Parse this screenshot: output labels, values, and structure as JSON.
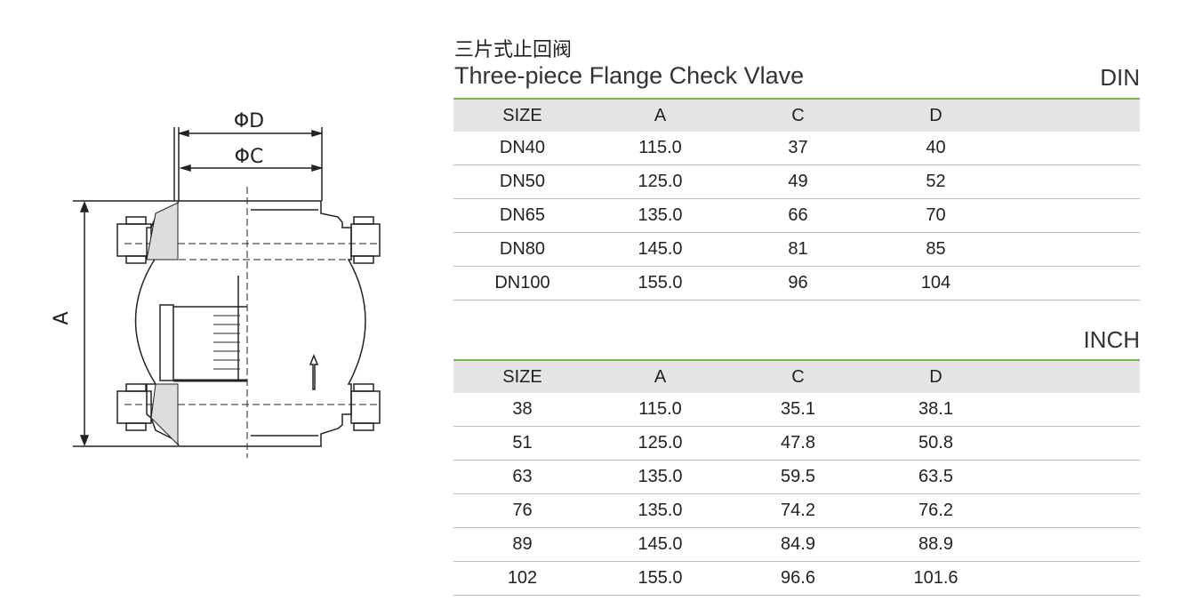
{
  "title": {
    "chinese": "三片式止回阀",
    "english": "Three-piece Flange Check Vlave"
  },
  "drawing": {
    "labels": {
      "outer_diameter": "ΦD",
      "inner_diameter": "ΦC",
      "length": "A"
    }
  },
  "din_table": {
    "standard": "DIN",
    "columns": [
      "SIZE",
      "A",
      "C",
      "D"
    ],
    "rows": [
      [
        "DN40",
        "115.0",
        "37",
        "40"
      ],
      [
        "DN50",
        "125.0",
        "49",
        "52"
      ],
      [
        "DN65",
        "135.0",
        "66",
        "70"
      ],
      [
        "DN80",
        "145.0",
        "81",
        "85"
      ],
      [
        "DN100",
        "155.0",
        "96",
        "104"
      ]
    ]
  },
  "inch_table": {
    "standard": "INCH",
    "columns": [
      "SIZE",
      "A",
      "C",
      "D"
    ],
    "rows": [
      [
        "38",
        "115.0",
        "35.1",
        "38.1"
      ],
      [
        "51",
        "125.0",
        "47.8",
        "50.8"
      ],
      [
        "63",
        "135.0",
        "59.5",
        "63.5"
      ],
      [
        "76",
        "135.0",
        "74.2",
        "76.2"
      ],
      [
        "89",
        "145.0",
        "84.9",
        "88.9"
      ],
      [
        "102",
        "155.0",
        "96.6",
        "101.6"
      ]
    ]
  },
  "colors": {
    "accent_line": "#7ab648",
    "header_bg": "#e4e4e4"
  }
}
